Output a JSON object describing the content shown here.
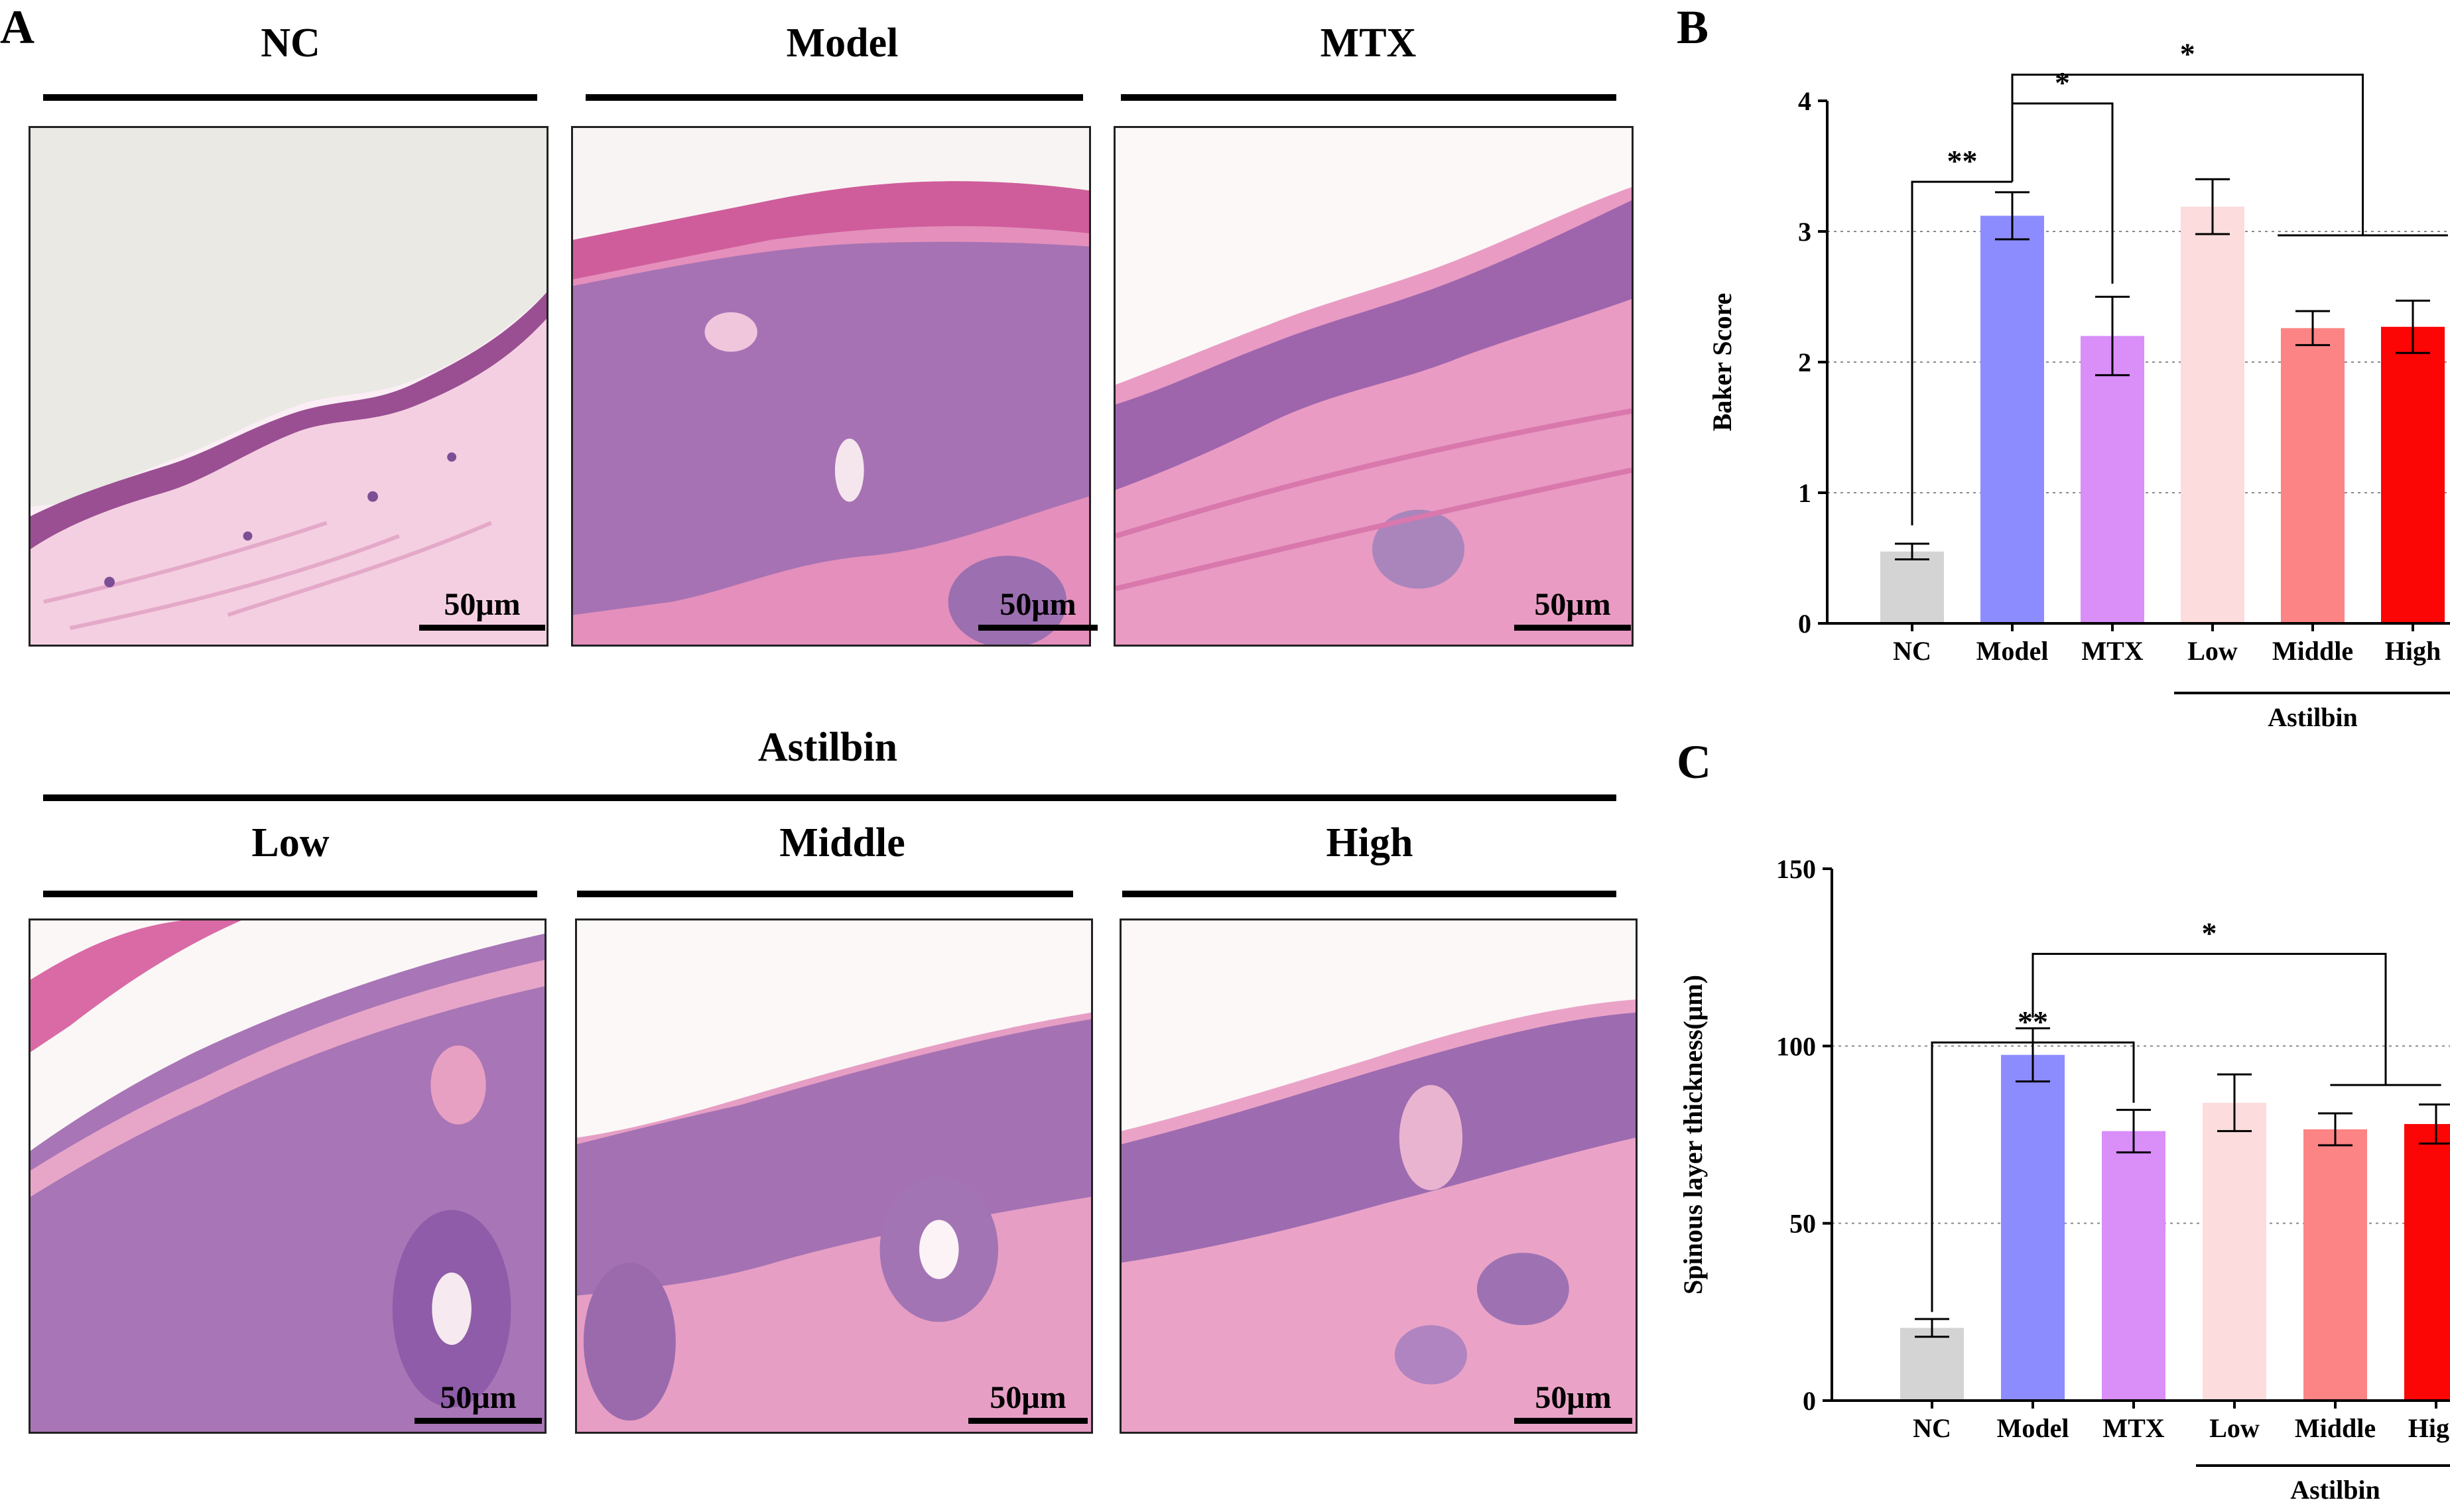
{
  "panels": {
    "A": "A",
    "B": "B",
    "C": "C"
  },
  "micrographs": {
    "top_titles": [
      "NC",
      "Model",
      "MTX"
    ],
    "group_title": "Astilbin",
    "bottom_titles": [
      "Low",
      "Middle",
      "High"
    ],
    "scale_label": "50μm"
  },
  "chart_data": [
    {
      "id": "B",
      "type": "bar",
      "categories": [
        "NC",
        "Model",
        "MTX",
        "Low",
        "Middle",
        "High"
      ],
      "group_label": "Astilbin",
      "group_categories": [
        "Low",
        "Middle",
        "High"
      ],
      "values": [
        0.55,
        3.12,
        2.2,
        3.19,
        2.26,
        2.27
      ],
      "errors": [
        0.06,
        0.18,
        0.3,
        0.21,
        0.13,
        0.2
      ],
      "colors": [
        "#d4d4d4",
        "#8c8cff",
        "#d98ef8",
        "#fcdcdc",
        "#fc8484",
        "#fb0505"
      ],
      "ylabel": "Baker Score",
      "ylim": [
        0,
        4
      ],
      "yticks": [
        0,
        1,
        2,
        3,
        4
      ],
      "grid": "dotted at 1, 2, 3",
      "significance": [
        {
          "from": "NC",
          "to": "Model",
          "label": "**"
        },
        {
          "from": "Model",
          "to": "MTX",
          "label": "*"
        },
        {
          "from": "Model",
          "to": "Middle–High",
          "label": "*"
        }
      ]
    },
    {
      "id": "C",
      "type": "bar",
      "categories": [
        "NC",
        "Model",
        "MTX",
        "Low",
        "Middle",
        "High"
      ],
      "group_label": "Astilbin",
      "group_categories": [
        "Low",
        "Middle",
        "High"
      ],
      "values": [
        20.5,
        97.5,
        76,
        84,
        76.5,
        78
      ],
      "errors": [
        2.5,
        7.5,
        6,
        8,
        4.5,
        5.5
      ],
      "colors": [
        "#d4d4d4",
        "#8c8cff",
        "#d98ef8",
        "#fcdcdc",
        "#fc8484",
        "#fb0505"
      ],
      "ylabel": "Spinous layer thickness(μm)",
      "ylim": [
        0,
        150
      ],
      "yticks": [
        0,
        50,
        100,
        150
      ],
      "grid": "dotted at 50, 100",
      "significance": [
        {
          "from": "NC",
          "to": "MTX",
          "label": "**"
        },
        {
          "from": "Model",
          "to": "Middle–High",
          "label": "*"
        }
      ]
    }
  ]
}
